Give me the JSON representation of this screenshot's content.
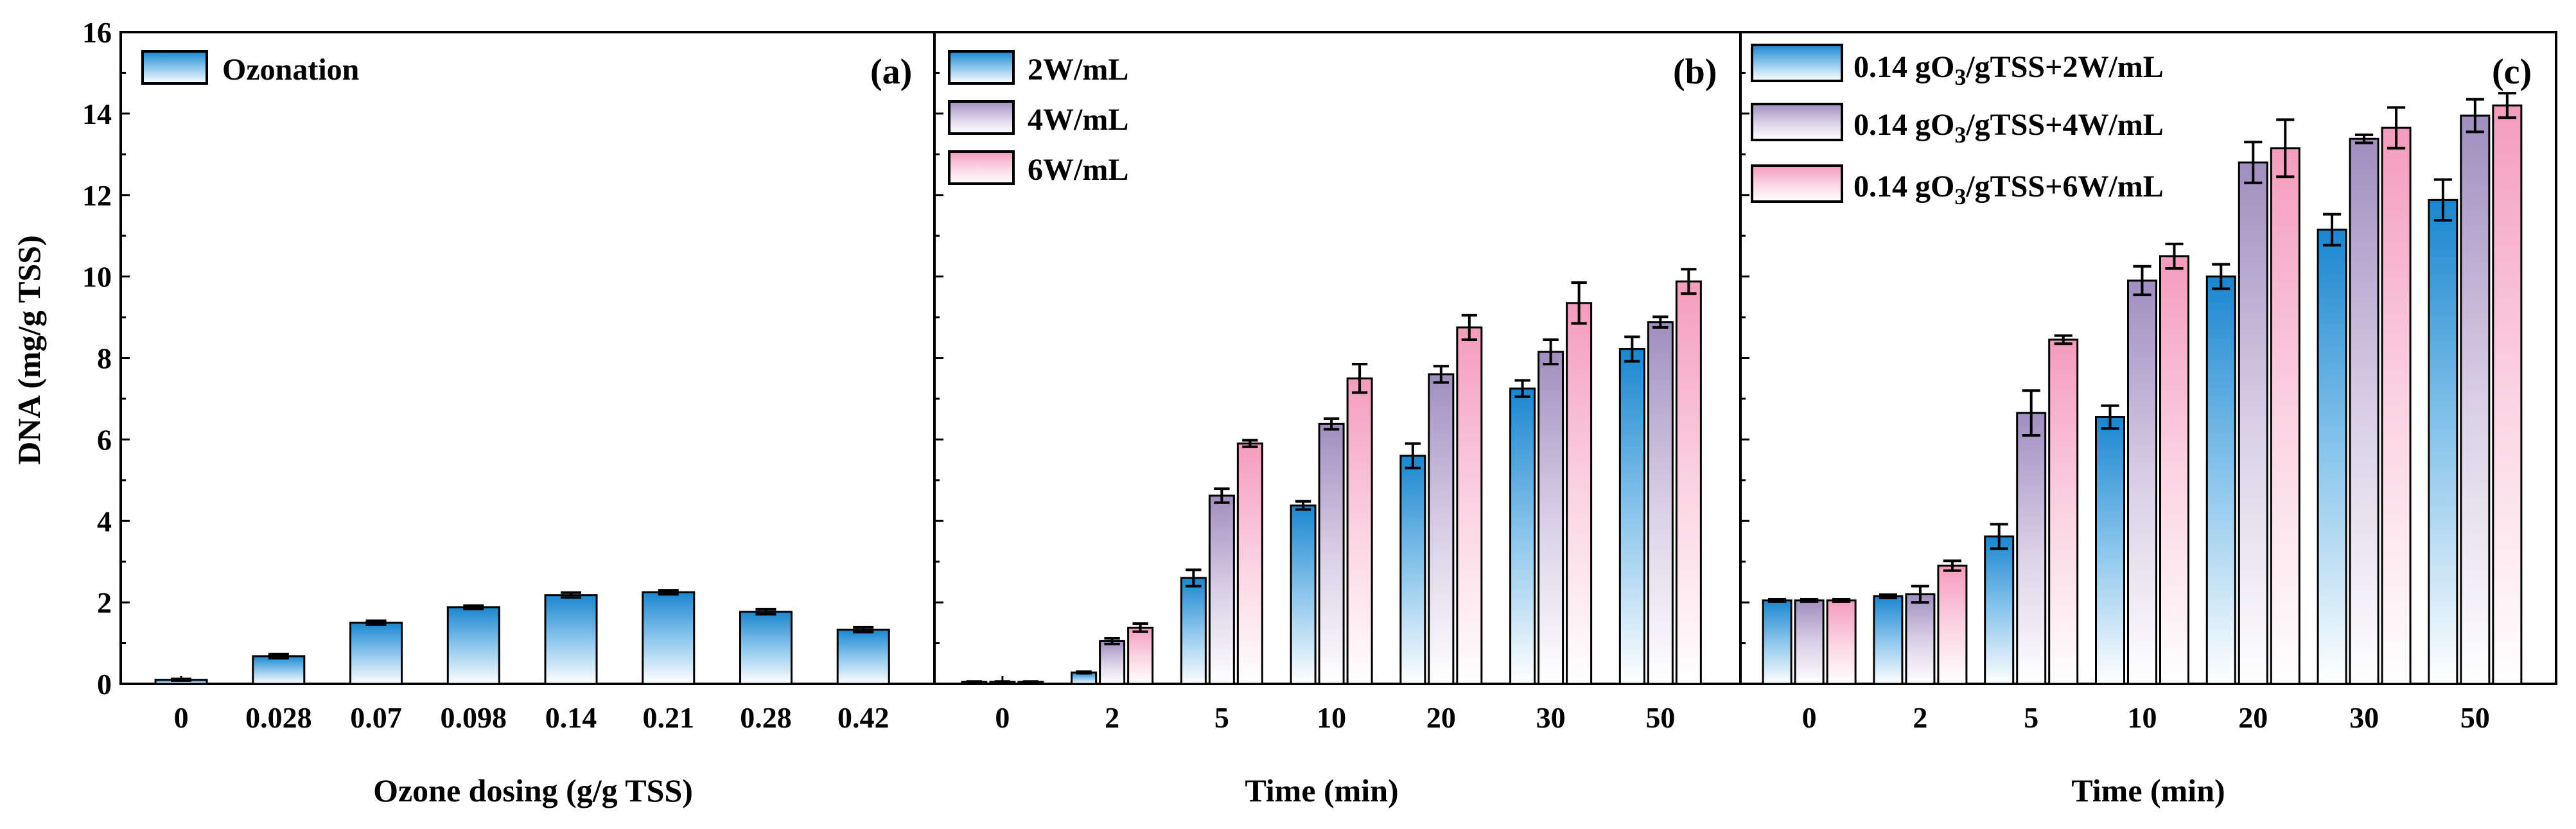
{
  "colors": {
    "blue": "#1a86cf",
    "purple": "#a08ebf",
    "pink": "#f49cbc",
    "axis": "#000000"
  },
  "chart_data": [
    {
      "type": "bar",
      "panel_label": "(a)",
      "xlabel": "Ozone dosing (g/g TSS)",
      "ylabel": "DNA (mg/g TSS)",
      "ylim": [
        0,
        16
      ],
      "yticks": [
        "0",
        "2",
        "4",
        "6",
        "8",
        "10",
        "12",
        "14",
        "16"
      ],
      "categories": [
        "0",
        "0.028",
        "0.07",
        "0.098",
        "0.14",
        "0.21",
        "0.28",
        "0.42"
      ],
      "legend_position": "top-left",
      "series": [
        {
          "name": "Ozonation",
          "color": "blue",
          "values": [
            0.1,
            0.68,
            1.5,
            1.88,
            2.18,
            2.25,
            1.77,
            1.33
          ],
          "errors": [
            0.02,
            0.05,
            0.05,
            0.04,
            0.06,
            0.05,
            0.06,
            0.06
          ]
        }
      ]
    },
    {
      "type": "bar",
      "panel_label": "(b)",
      "xlabel": "Time (min)",
      "ylim": [
        0,
        16
      ],
      "categories": [
        "0",
        "2",
        "5",
        "10",
        "20",
        "30",
        "50"
      ],
      "legend_position": "top-left",
      "series": [
        {
          "name": "2W/mL",
          "color": "blue",
          "values": [
            0.05,
            0.28,
            2.6,
            4.38,
            5.6,
            7.25,
            8.22
          ],
          "errors": [
            0.01,
            0.02,
            0.2,
            0.1,
            0.3,
            0.2,
            0.3
          ]
        },
        {
          "name": "4W/mL",
          "color": "purple",
          "values": [
            0.05,
            1.05,
            4.62,
            6.38,
            7.6,
            8.15,
            8.88
          ],
          "errors": [
            0.01,
            0.07,
            0.17,
            0.13,
            0.2,
            0.3,
            0.13
          ]
        },
        {
          "name": "6W/mL",
          "color": "pink",
          "values": [
            0.05,
            1.38,
            5.9,
            7.5,
            8.75,
            9.35,
            9.88
          ],
          "errors": [
            0.01,
            0.1,
            0.08,
            0.35,
            0.3,
            0.5,
            0.3
          ]
        }
      ]
    },
    {
      "type": "bar",
      "panel_label": "(c)",
      "xlabel": "Time (min)",
      "ylim": [
        0,
        16
      ],
      "categories": [
        "0",
        "2",
        "5",
        "10",
        "20",
        "30",
        "50"
      ],
      "legend_position": "top-left",
      "series": [
        {
          "name": "0.14 gO3/gTSS+2W/mL",
          "legend": {
            "pre": "0.14 gO",
            "sub": "3",
            "post": "/gTSS+2W/mL"
          },
          "color": "blue",
          "values": [
            2.05,
            2.15,
            3.62,
            6.55,
            10.0,
            11.15,
            11.88
          ],
          "errors": [
            0.03,
            0.04,
            0.3,
            0.28,
            0.3,
            0.38,
            0.5
          ]
        },
        {
          "name": "0.14 gO3/gTSS+4W/mL",
          "legend": {
            "pre": "0.14 gO",
            "sub": "3",
            "post": "/gTSS+4W/mL"
          },
          "color": "purple",
          "values": [
            2.05,
            2.2,
            6.65,
            9.9,
            12.8,
            13.38,
            13.95
          ],
          "errors": [
            0.03,
            0.2,
            0.55,
            0.35,
            0.5,
            0.1,
            0.4
          ]
        },
        {
          "name": "0.14 gO3/gTSS+6W/mL",
          "legend": {
            "pre": "0.14 gO",
            "sub": "3",
            "post": "/gTSS+6W/mL"
          },
          "color": "pink",
          "values": [
            2.05,
            2.9,
            8.45,
            10.5,
            13.15,
            13.65,
            14.2
          ],
          "errors": [
            0.03,
            0.12,
            0.1,
            0.3,
            0.7,
            0.5,
            0.3
          ]
        }
      ]
    }
  ]
}
